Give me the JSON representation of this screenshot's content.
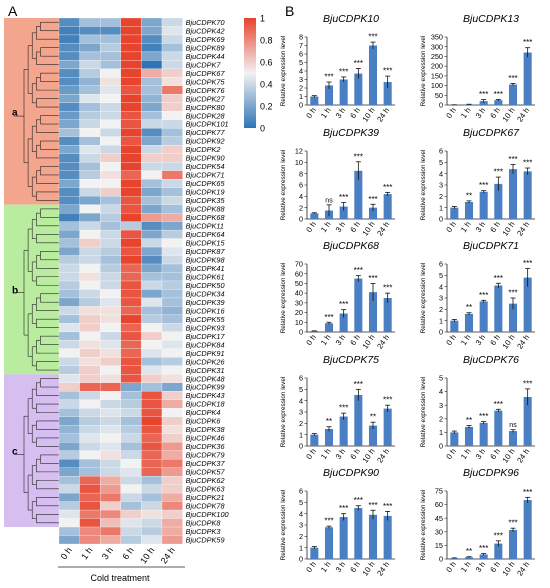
{
  "panel_labels": {
    "a": "A",
    "b": "B"
  },
  "heatmap": {
    "columns": [
      "0 h",
      "1 h",
      "3 h",
      "6 h",
      "10 h",
      "24 h"
    ],
    "xlabel": "Cold treatment",
    "cluster_labels": [
      "a",
      "b",
      "c"
    ],
    "cluster_colors": [
      "#f4a58e",
      "#b9ec9f",
      "#d6bff0"
    ],
    "cluster_ranges": [
      [
        0,
        21
      ],
      [
        22,
        41
      ],
      [
        42,
        59
      ]
    ],
    "colorbar_ticks": [
      "1",
      "0.8",
      "0.6",
      "0.4",
      "0.2",
      "0"
    ],
    "palette": [
      "#2f74b5",
      "#f2f2f2",
      "#e8432d"
    ],
    "genes": [
      "BjuCDPK70",
      "BjuCDPK42",
      "BjuCDPK69",
      "BjuCDPK89",
      "BjuCDPK44",
      "BjuCDPK7",
      "BjuCDPK67",
      "BjuCDPK75",
      "BjuCDPK76",
      "BjuCDPK27",
      "BjuCDPK80",
      "BjuCDPK28",
      "BjuCDPK101",
      "BjuCDPK77",
      "BjuCDPK92",
      "BjuCDPK2",
      "BjuCDPK90",
      "BjuCDPK54",
      "BjuCDPK71",
      "BjuCDPK65",
      "BjuCDPK19",
      "BjuCDPK35",
      "BjuCDPK88",
      "BjuCDPK68",
      "BjuCDPK11",
      "BjuCDPK64",
      "BjuCDPK15",
      "BjuCDPK87",
      "BjuCDPK98",
      "BjuCDPK41",
      "BjuCDPK61",
      "BjuCDPK50",
      "BjuCDPK34",
      "BjuCDPK39",
      "BjuCDPK16",
      "BjuCDPK55",
      "BjuCDPK93",
      "BjuCDPK17",
      "BjuCDPK84",
      "BjuCDPK91",
      "BjuCDPK26",
      "BjuCDPK31",
      "BjuCDPK48",
      "BjuCDPK99",
      "BjuCDPK43",
      "BjuCDPK18",
      "BjuCDPK4",
      "BjuCDPK6",
      "BjuCDPK38",
      "BjuCDPK46",
      "BjuCDPK36",
      "BjuCDPK79",
      "BjuCDPK37",
      "BjuCDPK57",
      "BjuCDPK62",
      "BjuCDPK63",
      "BjuCDPK21",
      "BjuCDPK78",
      "BjuCDPK100",
      "BjuCDPK8",
      "BjuCDPK3",
      "BjuCDPK59"
    ],
    "values": [
      [
        0.1,
        0.3,
        0.3,
        1.0,
        0.2,
        0.4
      ],
      [
        0.05,
        0.1,
        0.1,
        1.0,
        0.2,
        0.45
      ],
      [
        0.05,
        0.3,
        0.3,
        1.0,
        0.1,
        0.4
      ],
      [
        0.1,
        0.2,
        0.35,
        1.0,
        0.05,
        0.3
      ],
      [
        0.1,
        0.3,
        0.3,
        1.0,
        0.2,
        0.4
      ],
      [
        0.2,
        0.4,
        0.3,
        1.0,
        0.0,
        0.4
      ],
      [
        0.1,
        0.35,
        0.5,
        1.0,
        0.7,
        0.6
      ],
      [
        0.1,
        0.25,
        0.55,
        1.0,
        0.3,
        0.55
      ],
      [
        0.15,
        0.3,
        0.45,
        0.95,
        0.3,
        0.85
      ],
      [
        0.2,
        0.45,
        0.5,
        1.0,
        0.25,
        0.6
      ],
      [
        0.1,
        0.3,
        0.4,
        1.0,
        0.2,
        0.6
      ],
      [
        0.15,
        0.35,
        0.4,
        0.95,
        0.3,
        0.5
      ],
      [
        0.2,
        0.4,
        0.5,
        0.95,
        0.4,
        0.4
      ],
      [
        0.3,
        0.5,
        0.4,
        1.0,
        0.1,
        0.3
      ],
      [
        0.1,
        0.3,
        0.5,
        0.95,
        0.2,
        0.35
      ],
      [
        0.2,
        0.45,
        0.4,
        1.0,
        0.4,
        0.6
      ],
      [
        0.1,
        0.4,
        0.6,
        1.0,
        0.6,
        0.6
      ],
      [
        0.1,
        0.3,
        0.5,
        1.0,
        0.4,
        0.4
      ],
      [
        0.1,
        0.35,
        0.55,
        0.9,
        0.5,
        0.85
      ],
      [
        0.2,
        0.5,
        0.5,
        1.0,
        0.3,
        0.4
      ],
      [
        0.1,
        0.4,
        0.6,
        1.0,
        0.2,
        0.3
      ],
      [
        0.1,
        0.2,
        0.3,
        0.95,
        0.3,
        0.4
      ],
      [
        0.2,
        0.5,
        0.4,
        0.95,
        0.2,
        0.3
      ],
      [
        0.05,
        0.2,
        0.35,
        1.0,
        0.75,
        0.7
      ],
      [
        0.3,
        0.4,
        0.3,
        0.35,
        0.1,
        0.2
      ],
      [
        0.2,
        0.5,
        0.4,
        0.95,
        0.2,
        0.35
      ],
      [
        0.3,
        0.6,
        0.4,
        1.0,
        0.4,
        0.5
      ],
      [
        0.2,
        0.4,
        0.35,
        0.95,
        0.2,
        0.45
      ],
      [
        0.35,
        0.4,
        0.3,
        1.0,
        0.1,
        0.4
      ],
      [
        0.4,
        0.5,
        0.35,
        0.9,
        0.2,
        0.3
      ],
      [
        0.4,
        0.55,
        0.4,
        0.9,
        0.3,
        0.3
      ],
      [
        0.35,
        0.5,
        0.4,
        0.95,
        0.4,
        0.35
      ],
      [
        0.3,
        0.4,
        0.5,
        0.95,
        0.2,
        0.3
      ],
      [
        0.2,
        0.35,
        0.45,
        0.95,
        0.45,
        0.3
      ],
      [
        0.4,
        0.55,
        0.55,
        0.9,
        0.3,
        0.25
      ],
      [
        0.3,
        0.6,
        0.55,
        1.0,
        0.35,
        0.3
      ],
      [
        0.45,
        0.6,
        0.5,
        0.9,
        0.5,
        0.4
      ],
      [
        0.3,
        0.5,
        0.4,
        0.95,
        0.6,
        0.5
      ],
      [
        0.4,
        0.55,
        0.45,
        0.9,
        0.5,
        0.45
      ],
      [
        0.5,
        0.6,
        0.55,
        0.9,
        0.45,
        0.5
      ],
      [
        0.4,
        0.55,
        0.6,
        0.95,
        0.3,
        0.35
      ],
      [
        0.35,
        0.6,
        0.5,
        0.95,
        0.45,
        0.5
      ],
      [
        0.45,
        0.6,
        0.55,
        0.95,
        0.6,
        0.55
      ],
      [
        0.6,
        0.9,
        0.9,
        0.2,
        0.3,
        0.2
      ],
      [
        0.3,
        0.4,
        0.5,
        0.3,
        0.95,
        0.6
      ],
      [
        0.4,
        0.5,
        0.4,
        0.35,
        0.95,
        0.7
      ],
      [
        0.3,
        0.4,
        0.45,
        0.4,
        0.95,
        0.5
      ],
      [
        0.2,
        0.35,
        0.4,
        0.3,
        1.0,
        0.6
      ],
      [
        0.25,
        0.4,
        0.45,
        0.35,
        0.95,
        0.55
      ],
      [
        0.3,
        0.45,
        0.5,
        0.4,
        0.9,
        0.6
      ],
      [
        0.2,
        0.4,
        0.45,
        0.3,
        0.95,
        0.75
      ],
      [
        0.35,
        0.5,
        0.55,
        0.4,
        0.9,
        0.7
      ],
      [
        0.1,
        0.3,
        0.4,
        0.5,
        0.9,
        0.85
      ],
      [
        0.2,
        0.3,
        0.4,
        0.45,
        0.9,
        0.75
      ],
      [
        0.3,
        0.9,
        0.7,
        0.4,
        0.3,
        0.6
      ],
      [
        0.4,
        0.95,
        0.75,
        0.5,
        0.4,
        0.6
      ],
      [
        0.2,
        0.9,
        0.85,
        0.4,
        0.3,
        0.7
      ],
      [
        0.35,
        0.95,
        0.6,
        0.3,
        0.4,
        0.8
      ],
      [
        0.45,
        0.85,
        0.8,
        0.6,
        0.55,
        0.6
      ],
      [
        0.5,
        0.95,
        0.65,
        0.45,
        0.4,
        0.7
      ],
      [
        0.3,
        0.8,
        0.85,
        0.4,
        0.35,
        0.7
      ],
      [
        0.2,
        0.8,
        0.7,
        0.35,
        0.45,
        0.75
      ]
    ]
  },
  "bar_panel": {
    "x_categories": [
      "0 h",
      "1 h",
      "3 h",
      "6 h",
      "10 h",
      "24 h"
    ],
    "ylabel": "Relative expression level",
    "bar_color": "#4a7fc4"
  },
  "chart_data": [
    {
      "type": "bar",
      "title": "BjuCDPK10",
      "ylim": [
        0,
        8
      ],
      "yticks": [
        0,
        1,
        2,
        3,
        4,
        5,
        6,
        7,
        8
      ],
      "categories": [
        "0 h",
        "1 h",
        "3 h",
        "6 h",
        "10 h",
        "24 h"
      ],
      "values": [
        1,
        2.3,
        3.0,
        3.7,
        7.0,
        2.7
      ],
      "errors": [
        0.1,
        0.4,
        0.3,
        0.6,
        0.4,
        0.7
      ],
      "significance": [
        "",
        "***",
        "***",
        "***",
        "***",
        "***"
      ]
    },
    {
      "type": "bar",
      "title": "BjuCDPK13",
      "ylim": [
        0,
        350
      ],
      "yticks": [
        0,
        50,
        100,
        150,
        200,
        250,
        300,
        350
      ],
      "categories": [
        "0 h",
        "1 h",
        "3 h",
        "6 h",
        "10 h",
        "24 h"
      ],
      "values": [
        1,
        3,
        20,
        25,
        105,
        270
      ],
      "errors": [
        0.2,
        1,
        8,
        4,
        6,
        25
      ],
      "significance": [
        "",
        "",
        "***",
        "***",
        "***",
        "***"
      ]
    },
    {
      "type": "bar",
      "title": "BjuCDPK39",
      "ylim": [
        0,
        12
      ],
      "yticks": [
        0,
        2,
        4,
        6,
        8,
        10,
        12
      ],
      "categories": [
        "0 h",
        "1 h",
        "3 h",
        "6 h",
        "10 h",
        "24 h"
      ],
      "values": [
        1,
        1.5,
        2.2,
        8.5,
        2.0,
        4.4
      ],
      "errors": [
        0.1,
        1.0,
        0.7,
        1.6,
        0.6,
        0.3
      ],
      "significance": [
        "",
        "ns",
        "***",
        "***",
        "***",
        "***"
      ]
    },
    {
      "type": "bar",
      "title": "BjuCDPK67",
      "ylim": [
        0,
        6
      ],
      "yticks": [
        0,
        1,
        2,
        3,
        4,
        5,
        6
      ],
      "categories": [
        "0 h",
        "1 h",
        "3 h",
        "6 h",
        "10 h",
        "24 h"
      ],
      "values": [
        1,
        1.5,
        2.4,
        3.1,
        4.4,
        4.2
      ],
      "errors": [
        0.1,
        0.1,
        0.1,
        0.6,
        0.4,
        0.3
      ],
      "significance": [
        "",
        "**",
        "***",
        "***",
        "***",
        "***"
      ]
    },
    {
      "type": "bar",
      "title": "BjuCDPK68",
      "ylim": [
        0,
        70
      ],
      "yticks": [
        0,
        10,
        20,
        30,
        40,
        50,
        60,
        70
      ],
      "categories": [
        "0 h",
        "1 h",
        "3 h",
        "6 h",
        "10 h",
        "24 h"
      ],
      "values": [
        1,
        9,
        19,
        55,
        41,
        35
      ],
      "errors": [
        0.2,
        1,
        4,
        3,
        9,
        5
      ],
      "significance": [
        "",
        "***",
        "***",
        "***",
        "***",
        "***"
      ]
    },
    {
      "type": "bar",
      "title": "BjuCDPK71",
      "ylim": [
        0,
        6
      ],
      "yticks": [
        0,
        1,
        2,
        3,
        4,
        5,
        6
      ],
      "categories": [
        "0 h",
        "1 h",
        "3 h",
        "6 h",
        "10 h",
        "24 h"
      ],
      "values": [
        1,
        1.6,
        2.7,
        4.1,
        2.5,
        4.8
      ],
      "errors": [
        0.1,
        0.1,
        0.1,
        0.2,
        0.5,
        0.8
      ],
      "significance": [
        "",
        "**",
        "***",
        "***",
        "***",
        "***"
      ]
    },
    {
      "type": "bar",
      "title": "BjuCDPK75",
      "ylim": [
        0,
        6
      ],
      "yticks": [
        0,
        1,
        2,
        3,
        4,
        5,
        6
      ],
      "categories": [
        "0 h",
        "1 h",
        "3 h",
        "6 h",
        "10 h",
        "24 h"
      ],
      "values": [
        1,
        1.5,
        2.6,
        4.5,
        1.8,
        3.3
      ],
      "errors": [
        0.1,
        0.2,
        0.3,
        0.5,
        0.3,
        0.3
      ],
      "significance": [
        "",
        "**",
        "***",
        "***",
        "**",
        "***"
      ]
    },
    {
      "type": "bar",
      "title": "BjuCDPK76",
      "ylim": [
        0,
        5
      ],
      "yticks": [
        0,
        1,
        2,
        3,
        4,
        5
      ],
      "categories": [
        "0 h",
        "1 h",
        "3 h",
        "6 h",
        "10 h",
        "24 h"
      ],
      "values": [
        1,
        1.4,
        1.7,
        2.6,
        1.1,
        3.6
      ],
      "errors": [
        0.1,
        0.1,
        0.1,
        0.1,
        0.1,
        0.6
      ],
      "significance": [
        "",
        "**",
        "***",
        "***",
        "ns",
        "***"
      ]
    },
    {
      "type": "bar",
      "title": "BjuCDPK90",
      "ylim": [
        0,
        6
      ],
      "yticks": [
        0,
        1,
        2,
        3,
        4,
        5,
        6
      ],
      "categories": [
        "0 h",
        "1 h",
        "3 h",
        "6 h",
        "10 h",
        "24 h"
      ],
      "values": [
        1,
        2.8,
        3.7,
        4.5,
        3.9,
        3.8
      ],
      "errors": [
        0.1,
        0.1,
        0.3,
        0.2,
        0.4,
        0.4
      ],
      "significance": [
        "",
        "***",
        "***",
        "***",
        "***",
        "***"
      ]
    },
    {
      "type": "bar",
      "title": "BjuCDPK96",
      "ylim": [
        0,
        75
      ],
      "yticks": [
        0,
        15,
        30,
        45,
        60,
        75
      ],
      "categories": [
        "0 h",
        "1 h",
        "3 h",
        "6 h",
        "10 h",
        "24 h"
      ],
      "values": [
        1,
        2,
        5,
        17,
        32,
        65
      ],
      "errors": [
        0.2,
        0.5,
        1,
        3,
        2,
        3
      ],
      "significance": [
        "",
        "**",
        "***",
        "***",
        "***",
        "***"
      ]
    }
  ]
}
